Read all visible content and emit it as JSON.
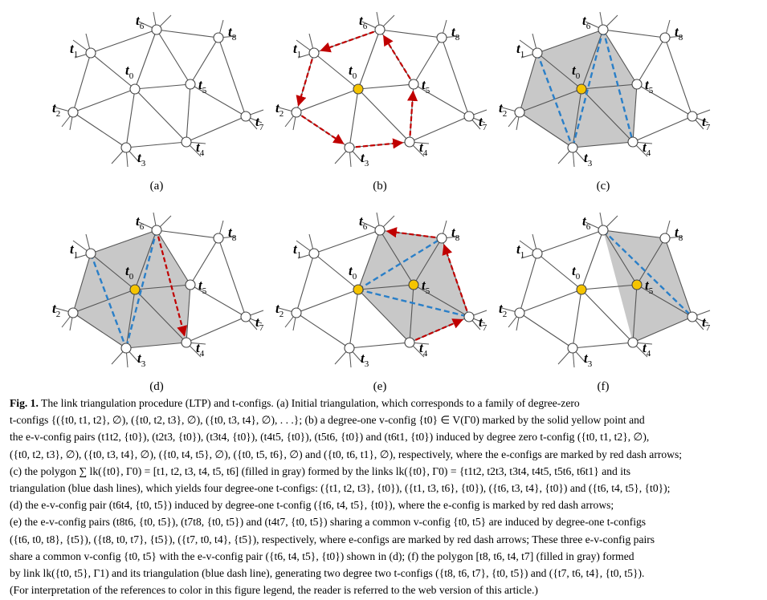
{
  "figure": {
    "panel_labels": [
      "(a)",
      "(b)",
      "(c)",
      "(d)",
      "(e)",
      "(f)"
    ],
    "vertex_names": [
      "t6",
      "t8",
      "t1",
      "t0",
      "t5",
      "t2",
      "t7",
      "t3",
      "t4"
    ],
    "colors": {
      "edge": "#555555",
      "node_fill": "#ffffff",
      "center_node_fill": "#f5c400",
      "polygon_fill": "#c8c8c8",
      "red_dash_arrow": "#c00000",
      "blue_dash_line": "#2a7fc8"
    }
  },
  "caption": {
    "label": "Fig. 1.",
    "lines": [
      "The link triangulation procedure (LTP) and t-configs. (a) Initial triangulation, which corresponds to a family of degree-zero",
      "t-configs {({t0, t1, t2}, ∅), ({t0, t2, t3}, ∅), ({t0, t3, t4}, ∅), . . .}; (b) a degree-one v-config {t0} ∈ V(Γ0) marked by the solid yellow point and",
      "the e-v-config pairs (t1t2, {t0}), (t2t3, {t0}), (t3t4, {t0}), (t4t5, {t0}), (t5t6, {t0}) and (t6t1, {t0}) induced by degree zero t-config ({t0, t1, t2}, ∅),",
      "({t0, t2, t3}, ∅), ({t0, t3, t4}, ∅), ({t0, t4, t5}, ∅), ({t0, t5, t6}, ∅) and ({t0, t6, t1}, ∅), respectively, where the e-configs are marked by red dash arrows;",
      "(c) the polygon ∑ lk({t0}, Γ0) = [t1, t2, t3, t4, t5, t6] (filled in gray) formed by the links lk({t0}, Γ0) = {t1t2, t2t3, t3t4, t4t5, t5t6, t6t1} and its",
      "triangulation (blue dash lines), which yields four degree-one t-configs: ({t1, t2, t3}, {t0}), ({t1, t3, t6}, {t0}), ({t6, t3, t4}, {t0}) and ({t6, t4, t5}, {t0});",
      "(d) the e-v-config pair (t6t4, {t0, t5}) induced by degree-one t-config ({t6, t4, t5}, {t0}), where the e-config is marked by red dash arrows;",
      "(e) the e-v-config pairs (t8t6, {t0, t5}), (t7t8, {t0, t5}) and (t4t7, {t0, t5}) sharing a common v-config {t0, t5} are induced by degree-one t-configs",
      "({t6, t0, t8}, {t5}), ({t8, t0, t7}, {t5}), ({t7, t0, t4}, {t5}), respectively, where e-configs are marked by red dash arrows; These three e-v-config pairs",
      "share a common v-config {t0, t5} with the e-v-config pair ({t6, t4, t5}, {t0}) shown in (d); (f) the polygon [t8, t6, t4, t7] (filled in gray) formed",
      "by link lk({t0, t5}, Γ1) and its triangulation (blue dash line), generating two degree two t-configs ({t8, t6, t7}, {t0, t5}) and ({t7, t6, t4}, {t0, t5}).",
      "(For interpretation of the references to color in this figure legend, the reader is referred to the web version of this article.)"
    ]
  }
}
